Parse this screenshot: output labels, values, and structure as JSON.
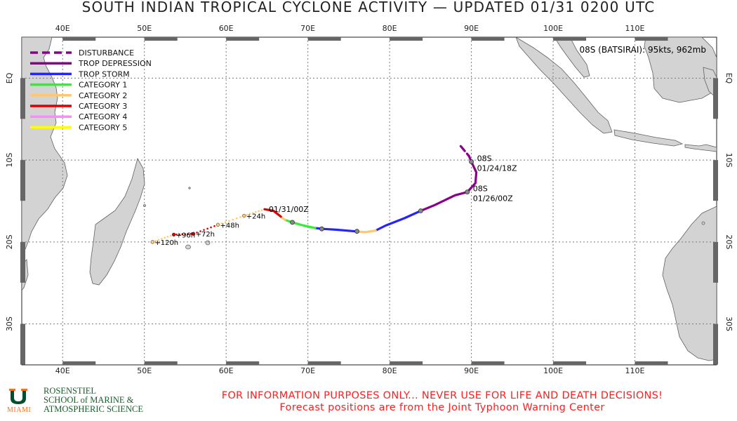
{
  "title": "SOUTH INDIAN TROPICAL CYCLONE ACTIVITY — UPDATED 01/31 0200 UTC",
  "map": {
    "lon_range": [
      35,
      120
    ],
    "lat_range": [
      -35,
      5
    ],
    "lon_ticks": [
      40,
      50,
      60,
      70,
      80,
      90,
      100,
      110
    ],
    "lon_tick_labels": [
      "40E",
      "50E",
      "60E",
      "70E",
      "80E",
      "90E",
      "100E",
      "110E"
    ],
    "lat_ticks": [
      0,
      -10,
      -20,
      -30
    ],
    "lat_tick_labels": [
      "EQ",
      "10S",
      "20S",
      "30S"
    ],
    "grid": true,
    "land_color": "#d3d3d3",
    "grid_color": "#7a7a7a"
  },
  "legend": {
    "placement": "top-left",
    "items": [
      {
        "label": "DISTURBANCE",
        "color": "#8b008b",
        "dashed": true
      },
      {
        "label": "TROP DEPRESSION",
        "color": "#8b008b",
        "dashed": false
      },
      {
        "label": "TROP STORM",
        "color": "#2424ff",
        "dashed": false
      },
      {
        "label": "CATEGORY 1",
        "color": "#33ee33",
        "dashed": false
      },
      {
        "label": "CATEGORY 2",
        "color": "#ffc870",
        "dashed": false
      },
      {
        "label": "CATEGORY 3",
        "color": "#dd0000",
        "dashed": false
      },
      {
        "label": "CATEGORY 4",
        "color": "#ff88ff",
        "dashed": false
      },
      {
        "label": "CATEGORY 5",
        "color": "#ffff00",
        "dashed": false
      }
    ]
  },
  "storm": {
    "info": "08S (BATSIRAI): 95kts, 962mb",
    "track_segments": [
      {
        "intensity": "DISTURBANCE",
        "color": "#8b008b",
        "dashed": true,
        "points": [
          [
            88.7,
            -8.3
          ],
          [
            89.7,
            -9.5
          ]
        ]
      },
      {
        "intensity": "TROP DEPRESSION",
        "color": "#8b008b",
        "dashed": false,
        "points": [
          [
            89.7,
            -9.5
          ],
          [
            90.0,
            -10.2
          ],
          [
            90.6,
            -11.5
          ],
          [
            90.5,
            -12.8
          ],
          [
            89.5,
            -13.9
          ],
          [
            88.0,
            -14.3
          ],
          [
            85.5,
            -15.5
          ],
          [
            83.8,
            -16.2
          ]
        ]
      },
      {
        "intensity": "TROP STORM",
        "color": "#2424ff",
        "dashed": false,
        "points": [
          [
            83.8,
            -16.2
          ],
          [
            81.8,
            -17.1
          ],
          [
            79.5,
            -18.0
          ],
          [
            78.3,
            -18.6
          ]
        ]
      },
      {
        "intensity": "CATEGORY 2",
        "color": "#ffc870",
        "dashed": false,
        "points": [
          [
            78.3,
            -18.6
          ],
          [
            77.0,
            -18.8
          ],
          [
            75.8,
            -18.7
          ]
        ]
      },
      {
        "intensity": "TROP STORM",
        "color": "#2424ff",
        "dashed": false,
        "points": [
          [
            75.8,
            -18.7
          ],
          [
            73.5,
            -18.5
          ],
          [
            71.8,
            -18.4
          ],
          [
            70.9,
            -18.3
          ]
        ]
      },
      {
        "intensity": "CATEGORY 1",
        "color": "#33ee33",
        "dashed": false,
        "points": [
          [
            70.9,
            -18.3
          ],
          [
            69.5,
            -18.0
          ],
          [
            68.1,
            -17.6
          ],
          [
            67.2,
            -17.3
          ]
        ]
      },
      {
        "intensity": "CATEGORY 2",
        "color": "#ffc870",
        "dashed": false,
        "points": [
          [
            67.2,
            -17.3
          ],
          [
            66.7,
            -16.9
          ]
        ]
      },
      {
        "intensity": "CATEGORY 3",
        "color": "#dd0000",
        "dashed": false,
        "points": [
          [
            66.7,
            -16.9
          ],
          [
            65.8,
            -16.2
          ],
          [
            64.7,
            -16.0
          ]
        ]
      }
    ],
    "track_markers": [
      [
        90.0,
        -10.2
      ],
      [
        89.5,
        -13.9
      ],
      [
        83.8,
        -16.2
      ],
      [
        76.0,
        -18.7
      ],
      [
        71.7,
        -18.4
      ],
      [
        68.1,
        -17.6
      ]
    ],
    "labels": [
      {
        "id": "08S",
        "time": "01/24/18Z",
        "lon": 90.0,
        "lat": -10.2
      },
      {
        "id": "08S",
        "time": "01/26/00Z",
        "lon": 89.5,
        "lat": -13.9
      },
      {
        "time": "01/31/00Z",
        "lon": 64.7,
        "lat": -16.0
      }
    ],
    "forecast": [
      {
        "label": "+24h",
        "lon": 62.2,
        "lat": -16.8,
        "color": "#ffc870"
      },
      {
        "label": "+48h",
        "lon": 59.0,
        "lat": -17.9,
        "color": "#ffc870"
      },
      {
        "label": "+72h",
        "lon": 56.0,
        "lat": -19.0,
        "color": "#dd0000"
      },
      {
        "label": "+96h",
        "lon": 53.6,
        "lat": -19.1,
        "color": "#dd0000"
      },
      {
        "label": "+120h",
        "lon": 51.0,
        "lat": -20.0,
        "color": "#ffc870"
      }
    ]
  },
  "footer": {
    "line1": "FOR INFORMATION PURPOSES ONLY... NEVER USE FOR LIFE AND DEATH DECISIONS!",
    "line2": "Forecast positions are from the Joint Typhoon Warning Center"
  },
  "logo": {
    "line1": "ROSENSTIEL",
    "line2": "SCHOOL of MARINE &",
    "line3": "ATMOSPHERIC SCIENCE",
    "miami": "MIAMI",
    "u_color": "#005030",
    "accent_color": "#f47321"
  }
}
